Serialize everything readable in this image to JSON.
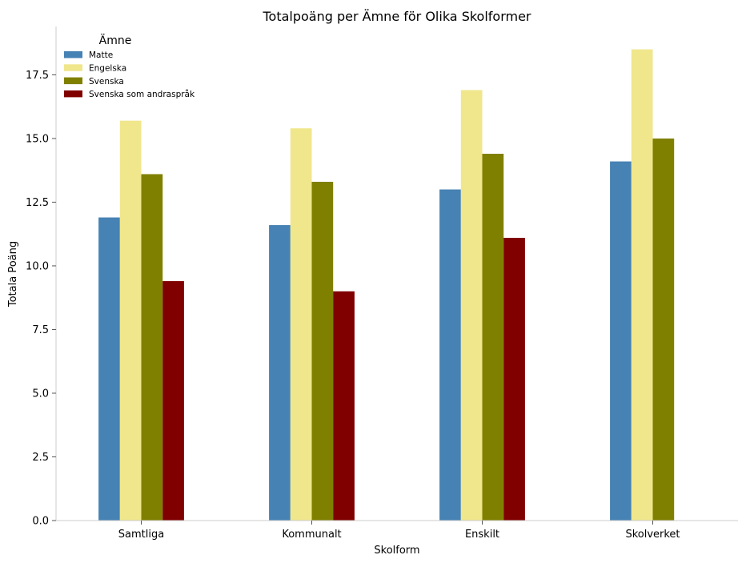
{
  "chart_data": {
    "type": "bar",
    "title": "Totalpoäng per Ämne för Olika Skolformer",
    "xlabel": "Skolform",
    "ylabel": "Totala Poäng",
    "categories": [
      "Samtliga",
      "Kommunalt",
      "Enskilt",
      "Skolverket"
    ],
    "series": [
      {
        "name": "Matte",
        "color": "#4682b4",
        "values": [
          11.9,
          11.6,
          13.0,
          14.1
        ]
      },
      {
        "name": "Engelska",
        "color": "#f0e68c",
        "values": [
          15.7,
          15.4,
          16.9,
          18.5
        ]
      },
      {
        "name": "Svenska",
        "color": "#808000",
        "values": [
          13.6,
          13.3,
          14.4,
          15.0
        ]
      },
      {
        "name": "Svenska som andraspråk",
        "color": "#800000",
        "values": [
          9.4,
          9.0,
          11.1,
          null
        ]
      }
    ],
    "ylim": [
      0,
      19.4
    ],
    "yticks": [
      "0.0",
      "2.5",
      "5.0",
      "7.5",
      "10.0",
      "12.5",
      "15.0",
      "17.5"
    ],
    "grid": false,
    "legend": {
      "title": "Ämne",
      "placement": "top-left"
    }
  }
}
